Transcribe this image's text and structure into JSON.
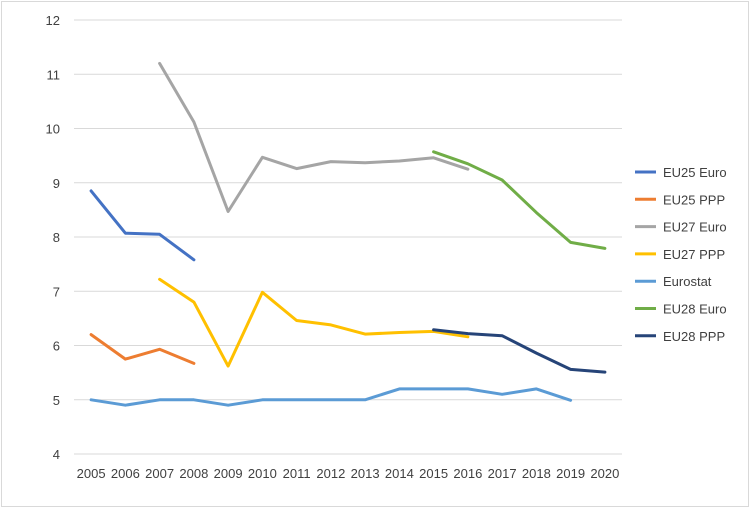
{
  "chart_data": {
    "type": "line",
    "title": "",
    "xlabel": "",
    "ylabel": "",
    "ylim": [
      4,
      12
    ],
    "yticks": [
      4,
      5,
      6,
      7,
      8,
      9,
      10,
      11,
      12
    ],
    "grid": true,
    "legend_position": "right",
    "categories": [
      "2005",
      "2006",
      "2007",
      "2008",
      "2009",
      "2010",
      "2011",
      "2012",
      "2013",
      "2014",
      "2015",
      "2016",
      "2017",
      "2018",
      "2019",
      "2020"
    ],
    "series": [
      {
        "name": "EU25 Euro",
        "color": "#4472c4",
        "values": [
          8.85,
          8.07,
          8.05,
          7.58,
          null,
          null,
          null,
          null,
          null,
          null,
          null,
          null,
          null,
          null,
          null,
          null
        ]
      },
      {
        "name": "EU25 PPP",
        "color": "#ed7d31",
        "values": [
          6.2,
          5.75,
          5.93,
          5.67,
          null,
          null,
          null,
          null,
          null,
          null,
          null,
          null,
          null,
          null,
          null,
          null
        ]
      },
      {
        "name": "EU27 Euro",
        "color": "#a5a5a5",
        "values": [
          null,
          null,
          11.2,
          10.12,
          8.47,
          9.47,
          9.26,
          9.39,
          9.37,
          9.4,
          9.46,
          9.25,
          null,
          null,
          null,
          null
        ]
      },
      {
        "name": "EU27 PPP",
        "color": "#ffc000",
        "values": [
          null,
          null,
          7.22,
          6.8,
          5.62,
          6.98,
          6.46,
          6.38,
          6.21,
          6.24,
          6.26,
          6.16,
          null,
          null,
          null,
          null
        ]
      },
      {
        "name": "Eurostat",
        "color": "#5b9bd5",
        "values": [
          5.0,
          4.9,
          5.0,
          5.0,
          4.9,
          5.0,
          5.0,
          5.0,
          5.0,
          5.2,
          5.2,
          5.2,
          5.1,
          5.2,
          4.99,
          null
        ]
      },
      {
        "name": "EU28 Euro",
        "color": "#70ad47",
        "values": [
          null,
          null,
          null,
          null,
          null,
          null,
          null,
          null,
          null,
          null,
          9.57,
          9.35,
          9.05,
          8.45,
          7.9,
          7.79
        ]
      },
      {
        "name": "EU28 PPP",
        "color": "#264478",
        "values": [
          null,
          null,
          null,
          null,
          null,
          null,
          null,
          null,
          null,
          null,
          6.29,
          6.22,
          6.18,
          5.86,
          5.56,
          5.51
        ]
      }
    ]
  }
}
